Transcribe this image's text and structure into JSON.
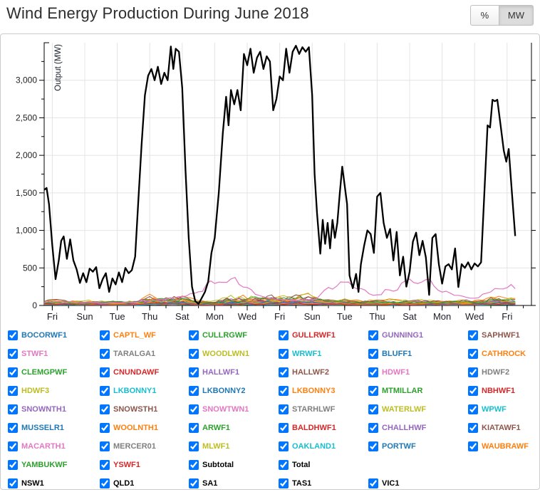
{
  "header": {
    "title": "Wind Energy Production During June 2018",
    "unit_toggle": {
      "percent_label": "%",
      "mw_label": "MW",
      "active": "MW"
    }
  },
  "chart_data": {
    "type": "line",
    "title": "Wind Energy Production During June 2018",
    "ylabel": "Output (MW)",
    "ylim": [
      0,
      3500
    ],
    "x_range_days": [
      0,
      30
    ],
    "grid": true,
    "y_ticks": [
      {
        "v": 0,
        "label": "0"
      },
      {
        "v": 500,
        "label": "500"
      },
      {
        "v": 1000,
        "label": "1,000"
      },
      {
        "v": 1500,
        "label": "1,500"
      },
      {
        "v": 2000,
        "label": "2,000"
      },
      {
        "v": 2500,
        "label": "2,500"
      },
      {
        "v": 3000,
        "label": "3,000"
      }
    ],
    "x_ticks": [
      {
        "day": 0.5,
        "label": "Fri"
      },
      {
        "day": 2.5,
        "label": "Sun"
      },
      {
        "day": 4.5,
        "label": "Tue"
      },
      {
        "day": 6.5,
        "label": "Thu"
      },
      {
        "day": 8.5,
        "label": "Sat"
      },
      {
        "day": 10.5,
        "label": "Mon"
      },
      {
        "day": 12.5,
        "label": "Wed"
      },
      {
        "day": 14.5,
        "label": "Fri"
      },
      {
        "day": 16.5,
        "label": "Sun"
      },
      {
        "day": 18.5,
        "label": "Tue"
      },
      {
        "day": 20.5,
        "label": "Thu"
      },
      {
        "day": 22.5,
        "label": "Sat"
      },
      {
        "day": 24.5,
        "label": "Mon"
      },
      {
        "day": 26.5,
        "label": "Wed"
      },
      {
        "day": 28.5,
        "label": "Fri"
      }
    ],
    "total_series": {
      "name": "Total",
      "color": "#000000",
      "points": [
        [
          0,
          1540
        ],
        [
          0.15,
          1565
        ],
        [
          0.3,
          1350
        ],
        [
          0.5,
          800
        ],
        [
          0.7,
          350
        ],
        [
          0.9,
          600
        ],
        [
          1.05,
          860
        ],
        [
          1.2,
          920
        ],
        [
          1.4,
          620
        ],
        [
          1.6,
          880
        ],
        [
          1.8,
          600
        ],
        [
          2.0,
          480
        ],
        [
          2.2,
          300
        ],
        [
          2.4,
          430
        ],
        [
          2.6,
          310
        ],
        [
          2.8,
          490
        ],
        [
          3.0,
          450
        ],
        [
          3.2,
          510
        ],
        [
          3.4,
          230
        ],
        [
          3.6,
          350
        ],
        [
          3.8,
          430
        ],
        [
          4.0,
          180
        ],
        [
          4.2,
          360
        ],
        [
          4.4,
          280
        ],
        [
          4.6,
          440
        ],
        [
          4.8,
          310
        ],
        [
          5.0,
          500
        ],
        [
          5.2,
          430
        ],
        [
          5.4,
          470
        ],
        [
          5.6,
          650
        ],
        [
          5.8,
          1400
        ],
        [
          6.0,
          2150
        ],
        [
          6.2,
          2800
        ],
        [
          6.4,
          3060
        ],
        [
          6.6,
          3150
        ],
        [
          6.8,
          3000
        ],
        [
          7.0,
          3180
        ],
        [
          7.2,
          2950
        ],
        [
          7.4,
          3100
        ],
        [
          7.6,
          3000
        ],
        [
          7.8,
          3450
        ],
        [
          7.95,
          3150
        ],
        [
          8.1,
          3420
        ],
        [
          8.3,
          3380
        ],
        [
          8.5,
          2900
        ],
        [
          8.7,
          1800
        ],
        [
          8.9,
          900
        ],
        [
          9.1,
          250
        ],
        [
          9.3,
          60
        ],
        [
          9.5,
          20
        ],
        [
          9.7,
          100
        ],
        [
          9.9,
          180
        ],
        [
          10.1,
          320
        ],
        [
          10.3,
          700
        ],
        [
          10.5,
          900
        ],
        [
          10.75,
          1500
        ],
        [
          11.0,
          2300
        ],
        [
          11.2,
          2780
        ],
        [
          11.35,
          2400
        ],
        [
          11.5,
          2870
        ],
        [
          11.7,
          2680
        ],
        [
          11.9,
          2870
        ],
        [
          12.1,
          2600
        ],
        [
          12.3,
          3350
        ],
        [
          12.5,
          3200
        ],
        [
          12.7,
          3420
        ],
        [
          12.9,
          3100
        ],
        [
          13.1,
          3300
        ],
        [
          13.3,
          3380
        ],
        [
          13.5,
          3150
        ],
        [
          13.7,
          3320
        ],
        [
          13.9,
          3250
        ],
        [
          14.1,
          2600
        ],
        [
          14.3,
          2750
        ],
        [
          14.5,
          3050
        ],
        [
          14.7,
          3000
        ],
        [
          14.9,
          3420
        ],
        [
          15.1,
          3100
        ],
        [
          15.3,
          3380
        ],
        [
          15.5,
          3460
        ],
        [
          15.7,
          3350
        ],
        [
          15.9,
          3440
        ],
        [
          16.1,
          3380
        ],
        [
          16.3,
          3440
        ],
        [
          16.5,
          2800
        ],
        [
          16.65,
          1750
        ],
        [
          16.8,
          1230
        ],
        [
          17.0,
          690
        ],
        [
          17.15,
          1140
        ],
        [
          17.3,
          820
        ],
        [
          17.45,
          1100
        ],
        [
          17.6,
          760
        ],
        [
          17.75,
          1140
        ],
        [
          17.9,
          900
        ],
        [
          18.05,
          1100
        ],
        [
          18.2,
          1500
        ],
        [
          18.35,
          1850
        ],
        [
          18.5,
          1600
        ],
        [
          18.65,
          1350
        ],
        [
          18.8,
          400
        ],
        [
          19.0,
          230
        ],
        [
          19.2,
          420
        ],
        [
          19.35,
          180
        ],
        [
          19.5,
          550
        ],
        [
          19.7,
          800
        ],
        [
          19.9,
          1000
        ],
        [
          20.1,
          950
        ],
        [
          20.3,
          700
        ],
        [
          20.5,
          1450
        ],
        [
          20.7,
          1500
        ],
        [
          20.9,
          1100
        ],
        [
          21.1,
          900
        ],
        [
          21.3,
          1020
        ],
        [
          21.5,
          600
        ],
        [
          21.7,
          980
        ],
        [
          21.9,
          400
        ],
        [
          22.1,
          650
        ],
        [
          22.3,
          250
        ],
        [
          22.5,
          450
        ],
        [
          22.7,
          850
        ],
        [
          22.9,
          970
        ],
        [
          23.1,
          670
        ],
        [
          23.3,
          860
        ],
        [
          23.5,
          640
        ],
        [
          23.7,
          140
        ],
        [
          23.9,
          900
        ],
        [
          24.1,
          950
        ],
        [
          24.3,
          550
        ],
        [
          24.5,
          290
        ],
        [
          24.7,
          520
        ],
        [
          24.9,
          550
        ],
        [
          25.1,
          480
        ],
        [
          25.3,
          760
        ],
        [
          25.5,
          245
        ],
        [
          25.7,
          550
        ],
        [
          25.9,
          500
        ],
        [
          26.1,
          575
        ],
        [
          26.3,
          480
        ],
        [
          26.5,
          560
        ],
        [
          26.7,
          520
        ],
        [
          26.9,
          575
        ],
        [
          27.1,
          1500
        ],
        [
          27.3,
          2400
        ],
        [
          27.45,
          2370
        ],
        [
          27.6,
          2740
        ],
        [
          27.75,
          2720
        ],
        [
          27.9,
          2740
        ],
        [
          28.1,
          2400
        ],
        [
          28.3,
          2060
        ],
        [
          28.45,
          1915
        ],
        [
          28.6,
          2085
        ],
        [
          28.8,
          1500
        ],
        [
          29.0,
          925
        ]
      ]
    },
    "farm_band": {
      "ymax_approx": 430,
      "typical_max": 150,
      "pink_peak_series": "SNOWTWN1"
    }
  },
  "legend": {
    "all_checked": true,
    "rows": [
      [
        {
          "label": "BOCORWF1",
          "color": "#1f77b4"
        },
        {
          "label": "CAPTL_WF",
          "color": "#ff7f0e"
        },
        {
          "label": "CULLRGWF",
          "color": "#2ca02c"
        },
        {
          "label": "GULLRWF1",
          "color": "#d62728"
        },
        {
          "label": "GUNNING1",
          "color": "#9467bd"
        },
        {
          "label": "SAPHWF1",
          "color": "#8c564b"
        }
      ],
      [
        {
          "label": "STWF1",
          "color": "#e377c2"
        },
        {
          "label": "TARALGA1",
          "color": "#7f7f7f"
        },
        {
          "label": "WOODLWN1",
          "color": "#bcbd22"
        },
        {
          "label": "WRWF1",
          "color": "#17becf"
        },
        {
          "label": "BLUFF1",
          "color": "#1f77b4"
        },
        {
          "label": "CATHROCK",
          "color": "#ff7f0e"
        }
      ],
      [
        {
          "label": "CLEMGPWF",
          "color": "#2ca02c"
        },
        {
          "label": "CNUNDAWF",
          "color": "#d62728"
        },
        {
          "label": "HALLWF1",
          "color": "#9467bd"
        },
        {
          "label": "HALLWF2",
          "color": "#8c564b"
        },
        {
          "label": "HDWF1",
          "color": "#e377c2"
        },
        {
          "label": "HDWF2",
          "color": "#7f7f7f"
        }
      ],
      [
        {
          "label": "HDWF3",
          "color": "#bcbd22"
        },
        {
          "label": "LKBONNY1",
          "color": "#17becf"
        },
        {
          "label": "LKBONNY2",
          "color": "#1f77b4"
        },
        {
          "label": "LKBONNY3",
          "color": "#ff7f0e"
        },
        {
          "label": "MTMILLAR",
          "color": "#2ca02c"
        },
        {
          "label": "NBHWF1",
          "color": "#d62728"
        }
      ],
      [
        {
          "label": "SNOWNTH1",
          "color": "#9467bd"
        },
        {
          "label": "SNOWSTH1",
          "color": "#8c564b"
        },
        {
          "label": "SNOWTWN1",
          "color": "#e377c2"
        },
        {
          "label": "STARHLWF",
          "color": "#7f7f7f"
        },
        {
          "label": "WATERLWF",
          "color": "#bcbd22"
        },
        {
          "label": "WPWF",
          "color": "#17becf"
        }
      ],
      [
        {
          "label": "MUSSELR1",
          "color": "#1f77b4"
        },
        {
          "label": "WOOLNTH1",
          "color": "#ff7f0e"
        },
        {
          "label": "ARWF1",
          "color": "#2ca02c"
        },
        {
          "label": "BALDHWF1",
          "color": "#d62728"
        },
        {
          "label": "CHALLHWF",
          "color": "#9467bd"
        },
        {
          "label": "KIATAWF1",
          "color": "#8c564b"
        }
      ],
      [
        {
          "label": "MACARTH1",
          "color": "#e377c2"
        },
        {
          "label": "MERCER01",
          "color": "#7f7f7f"
        },
        {
          "label": "MLWF1",
          "color": "#bcbd22"
        },
        {
          "label": "OAKLAND1",
          "color": "#17becf"
        },
        {
          "label": "PORTWF",
          "color": "#1f77b4"
        },
        {
          "label": "WAUBRAWF",
          "color": "#ff7f0e"
        }
      ],
      [
        {
          "label": "YAMBUKWF",
          "color": "#2ca02c"
        },
        {
          "label": "YSWF1",
          "color": "#d62728"
        },
        {
          "label": "Subtotal",
          "color": "#000000"
        },
        {
          "label": "Total",
          "color": "#000000"
        }
      ],
      [
        {
          "label": "NSW1",
          "color": "#000000"
        },
        {
          "label": "QLD1",
          "color": "#000000"
        },
        {
          "label": "SA1",
          "color": "#000000"
        },
        {
          "label": "TAS1",
          "color": "#000000"
        },
        {
          "label": "VIC1",
          "color": "#000000"
        }
      ]
    ]
  },
  "colors": {
    "grid": "#e4e4e4",
    "axis": "#000000",
    "panel_border": "#cccccc",
    "total_line": "#000000"
  }
}
